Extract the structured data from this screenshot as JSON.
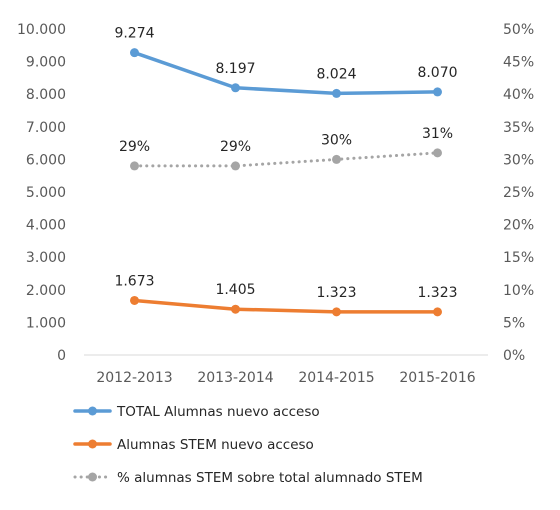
{
  "chart_data": {
    "type": "line",
    "categories": [
      "2012-2013",
      "2013-2014",
      "2014-2015",
      "2015-2016"
    ],
    "series": [
      {
        "name": "TOTAL Alumnas nuevo acceso",
        "axis": "left",
        "values": [
          9274,
          8197,
          8024,
          8070
        ],
        "labels": [
          "9.274",
          "8.197",
          "8.024",
          "8.070"
        ],
        "color": "#5B9BD5",
        "style": "solid"
      },
      {
        "name": "Alumnas STEM nuevo acceso",
        "axis": "left",
        "values": [
          1673,
          1405,
          1323,
          1323
        ],
        "labels": [
          "1.673",
          "1.405",
          "1.323",
          "1.323"
        ],
        "color": "#ED7D31",
        "style": "solid"
      },
      {
        "name": "% alumnas STEM sobre total alumnado STEM",
        "axis": "right",
        "values": [
          0.29,
          0.29,
          0.3,
          0.31
        ],
        "labels": [
          "29%",
          "29%",
          "30%",
          "31%"
        ],
        "color": "#A5A5A5",
        "style": "dotted"
      }
    ],
    "left_axis": {
      "ylim": [
        0,
        10000
      ],
      "ticks": [
        "0",
        "1.000",
        "2.000",
        "3.000",
        "4.000",
        "5.000",
        "6.000",
        "7.000",
        "8.000",
        "9.000",
        "10.000"
      ]
    },
    "right_axis": {
      "ylim": [
        0,
        0.5
      ],
      "ticks": [
        "0%",
        "5%",
        "10%",
        "15%",
        "20%",
        "25%",
        "30%",
        "35%",
        "40%",
        "45%",
        "50%"
      ]
    },
    "grid": false,
    "legend_position": "bottom-left"
  }
}
